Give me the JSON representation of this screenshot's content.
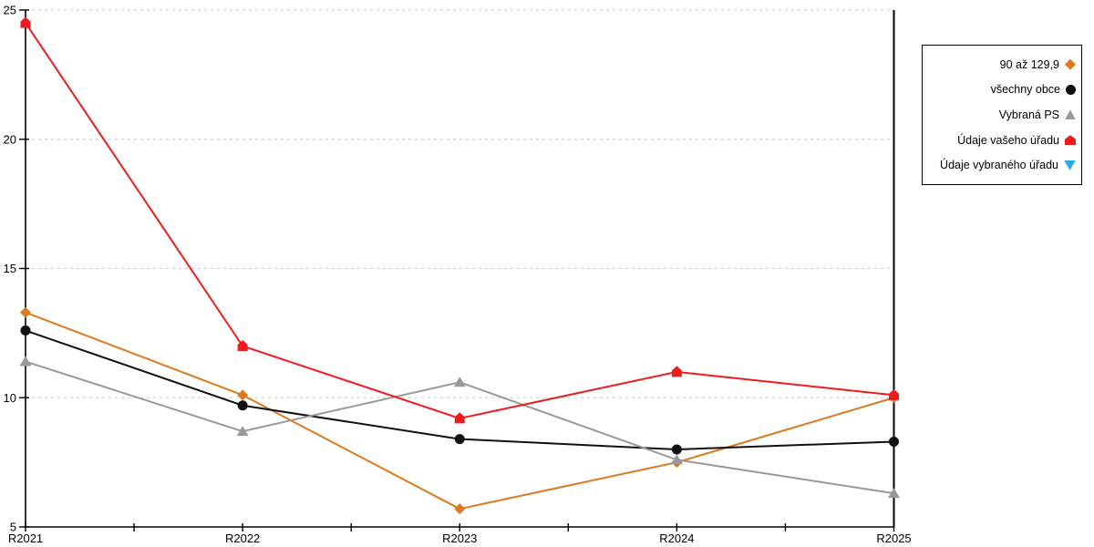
{
  "chart_data": {
    "type": "line",
    "title": "",
    "xlabel": "",
    "ylabel": "",
    "categories": [
      "R2021",
      "R2022",
      "R2023",
      "R2024",
      "R2025"
    ],
    "series": [
      {
        "name": "90 až 129,9",
        "marker": "diamond",
        "color": "#dd7a1f",
        "values": [
          13.3,
          10.1,
          5.7,
          7.5,
          10.0
        ]
      },
      {
        "name": "všechny obce",
        "marker": "circle",
        "color": "#111111",
        "values": [
          12.6,
          9.7,
          8.4,
          8.0,
          8.3
        ]
      },
      {
        "name": "Vybraná PS",
        "marker": "triangle-up",
        "color": "#999999",
        "values": [
          11.4,
          8.7,
          10.6,
          7.6,
          6.3
        ]
      },
      {
        "name": "Údaje vašeho úřadu",
        "marker": "pentagon",
        "color": "#ee1c1c",
        "values": [
          24.5,
          12.0,
          9.2,
          11.0,
          10.1
        ]
      },
      {
        "name": "Údaje vybraného úřadu",
        "marker": "triangle-down",
        "color": "#29abe2",
        "values": []
      }
    ],
    "ylim": [
      5,
      25
    ],
    "yticks": [
      5,
      10,
      15,
      20,
      25
    ],
    "x_minor_ticks_between_categories": 1,
    "grid": "horizontal dashed at 10, 15, 20, 25",
    "grid_color": "#c8c8c8",
    "axis_color": "#000000",
    "legend_position": "right"
  }
}
